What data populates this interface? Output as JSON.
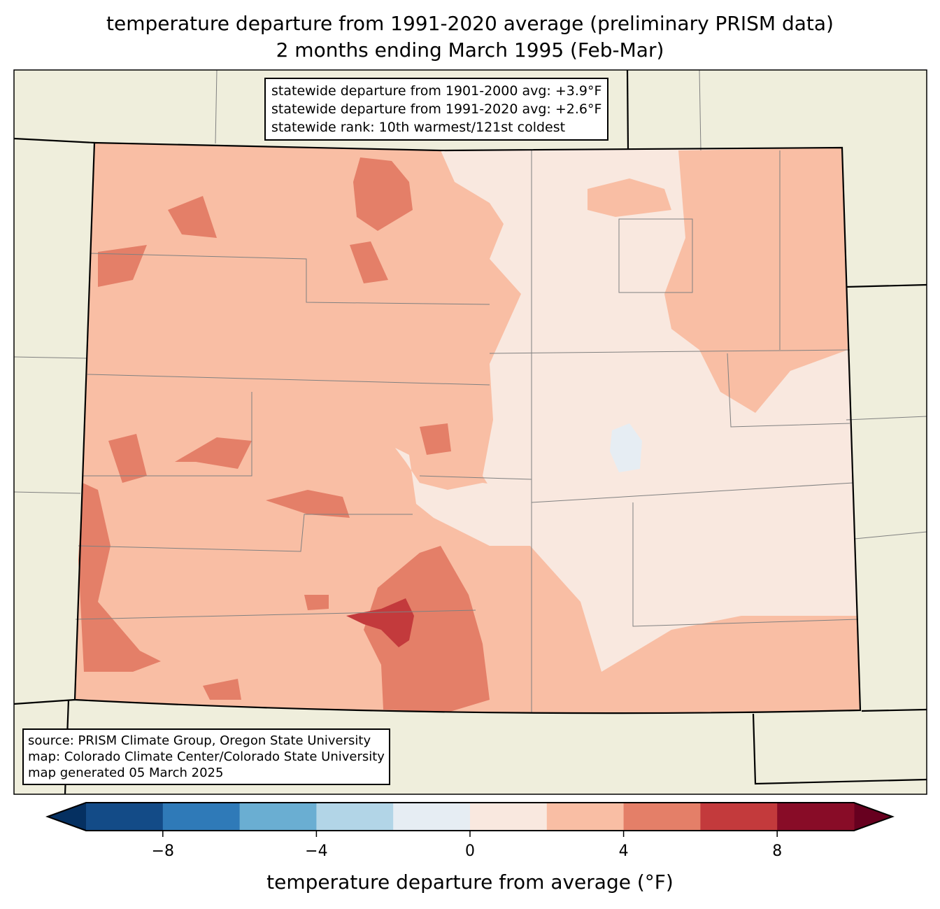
{
  "title": {
    "line1": "temperature departure from 1991-2020 average (preliminary PRISM data)",
    "line2": "2 months ending March 1995 (Feb-Mar)"
  },
  "stats_box": {
    "line1": "statewide departure from 1901-2000 avg: +3.9°F",
    "line2": "statewide departure from 1991-2020 avg: +2.6°F",
    "line3": "statewide rank: 10th warmest/121st coldest"
  },
  "source_box": {
    "line1": "source: PRISM Climate Group, Oregon State University",
    "line2": "map: Colorado Climate Center/Colorado State University",
    "line3": "map generated 05 March 2025"
  },
  "colorbar": {
    "label": "temperature departure from average (°F)",
    "bounds": [
      -10,
      -8,
      -6,
      -4,
      -2,
      0,
      2,
      4,
      6,
      8,
      10
    ],
    "colors": [
      "#134b87",
      "#2f7ab8",
      "#6aaed2",
      "#b2d5e7",
      "#e6edf3",
      "#f9e8df",
      "#f9bea4",
      "#e47f68",
      "#c33a3c",
      "#880c27"
    ],
    "under_color": "#053061",
    "over_color": "#67001f",
    "ticks": [
      "−8",
      "−4",
      "0",
      "4",
      "8"
    ],
    "tick_values": [
      -8,
      -4,
      0,
      4,
      8
    ]
  },
  "map_colors": {
    "land": "#efeedc",
    "departure_0_2": "#f9e8df",
    "departure_2_4": "#f9bea4",
    "departure_4_6": "#e47f68",
    "departure_6_8": "#c33a3c",
    "departure_neg": "#e6edf3"
  }
}
